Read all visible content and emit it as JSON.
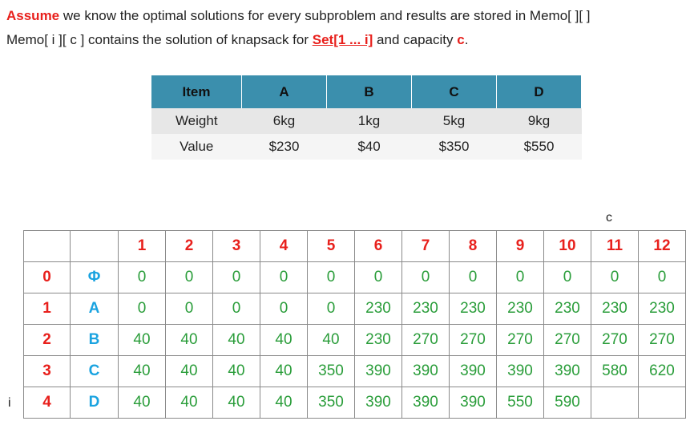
{
  "intro": {
    "line1_highlight": "Assume",
    "line1_rest": " we know the optimal solutions for every subproblem and results are stored in Memo[ ][ ]",
    "line2_prefix": "Memo[ i ][ c ] contains the solution of knapsack for ",
    "line2_set": "Set[1 ... i]",
    "line2_mid": " and capacity ",
    "line2_c": "c",
    "line2_end": "."
  },
  "items_table": {
    "header": [
      "Item",
      "A",
      "B",
      "C",
      "D"
    ],
    "weight_row": [
      "Weight",
      "6kg",
      "1kg",
      "5kg",
      "9kg"
    ],
    "value_row": [
      "Value",
      "$230",
      "$40",
      "$350",
      "$550"
    ]
  },
  "memo": {
    "c_label": "c",
    "i_label": "i",
    "capacities": [
      "1",
      "2",
      "3",
      "4",
      "5",
      "6",
      "7",
      "8",
      "9",
      "10",
      "11",
      "12"
    ],
    "rows": [
      {
        "index": "0",
        "item": "Φ",
        "values": [
          "0",
          "0",
          "0",
          "0",
          "0",
          "0",
          "0",
          "0",
          "0",
          "0",
          "0",
          "0"
        ]
      },
      {
        "index": "1",
        "item": "A",
        "values": [
          "0",
          "0",
          "0",
          "0",
          "0",
          "230",
          "230",
          "230",
          "230",
          "230",
          "230",
          "230"
        ]
      },
      {
        "index": "2",
        "item": "B",
        "values": [
          "40",
          "40",
          "40",
          "40",
          "40",
          "230",
          "270",
          "270",
          "270",
          "270",
          "270",
          "270"
        ]
      },
      {
        "index": "3",
        "item": "C",
        "values": [
          "40",
          "40",
          "40",
          "40",
          "350",
          "390",
          "390",
          "390",
          "390",
          "390",
          "580",
          "620"
        ]
      },
      {
        "index": "4",
        "item": "D",
        "values": [
          "40",
          "40",
          "40",
          "40",
          "350",
          "390",
          "390",
          "390",
          "550",
          "590",
          "",
          ""
        ]
      }
    ]
  },
  "colors": {
    "accent_red": "#e8201c",
    "header_blue": "#3b8fad",
    "item_blue": "#1aa3e0",
    "value_green": "#2a9d3a"
  }
}
